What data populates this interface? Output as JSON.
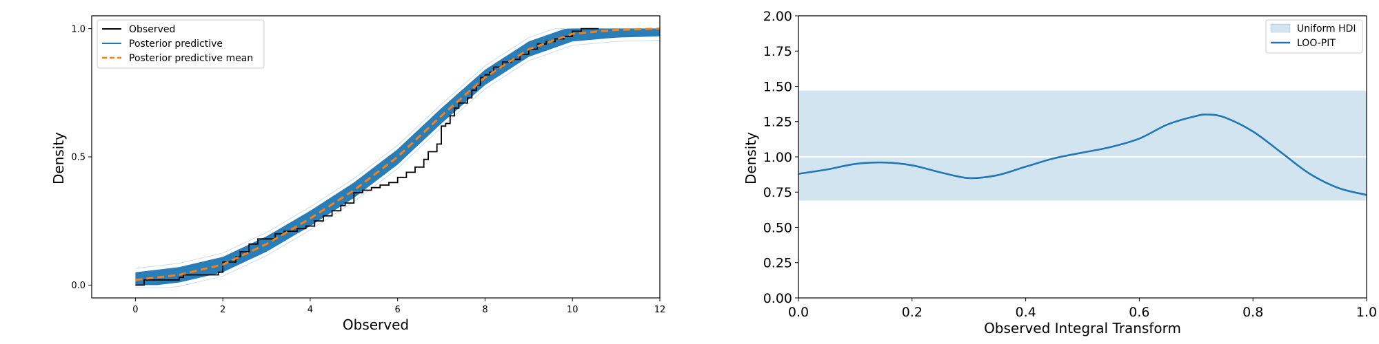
{
  "chart_data": [
    {
      "type": "line",
      "xlabel": "Observed",
      "ylabel": "Density",
      "xlim": [
        -1,
        12
      ],
      "ylim": [
        -0.05,
        1.05
      ],
      "xticks": [
        0,
        2,
        4,
        6,
        8,
        10,
        12
      ],
      "yticks": [
        0.0,
        0.5,
        1.0
      ],
      "xtick_labels": [
        "0",
        "2",
        "4",
        "6",
        "8",
        "10",
        "12"
      ],
      "ytick_labels": [
        "0.0",
        "0.5",
        "1.0"
      ],
      "legend_position": "upper left",
      "grid": false,
      "legend": [
        {
          "label": "Observed",
          "style": "solid",
          "color": "#000000"
        },
        {
          "label": "Posterior predictive",
          "style": "solid",
          "color": "#1f77b4"
        },
        {
          "label": "Posterior predictive mean",
          "style": "dashed",
          "color": "#ff7f0e"
        }
      ],
      "series": [
        {
          "name": "Observed",
          "kind": "step",
          "color": "#000000",
          "x": [
            0,
            0.2,
            1.0,
            1.1,
            1.9,
            2.0,
            2.3,
            2.4,
            2.6,
            2.8,
            3.2,
            3.4,
            3.7,
            3.9,
            4.1,
            4.3,
            4.5,
            4.7,
            4.8,
            5.0,
            5.2,
            5.4,
            5.6,
            5.8,
            6.0,
            6.2,
            6.4,
            6.6,
            6.7,
            6.9,
            7.0,
            7.1,
            7.2,
            7.3,
            7.4,
            7.6,
            7.7,
            7.8,
            7.9,
            8.0,
            8.1,
            8.2,
            8.4,
            8.6,
            8.8,
            9.0,
            9.2,
            9.4,
            9.6,
            9.8,
            10.0,
            10.2,
            10.6
          ],
          "y": [
            0.0,
            0.02,
            0.03,
            0.04,
            0.05,
            0.09,
            0.11,
            0.13,
            0.16,
            0.18,
            0.2,
            0.21,
            0.22,
            0.23,
            0.25,
            0.27,
            0.29,
            0.31,
            0.32,
            0.36,
            0.37,
            0.38,
            0.39,
            0.4,
            0.42,
            0.44,
            0.46,
            0.49,
            0.52,
            0.55,
            0.62,
            0.63,
            0.66,
            0.69,
            0.71,
            0.73,
            0.76,
            0.78,
            0.81,
            0.82,
            0.83,
            0.85,
            0.87,
            0.88,
            0.9,
            0.92,
            0.94,
            0.95,
            0.96,
            0.97,
            0.99,
            1.0,
            1.0
          ]
        },
        {
          "name": "Posterior predictive mean",
          "kind": "line",
          "style": "dashed",
          "color": "#ff7f0e",
          "x": [
            0,
            1,
            2,
            3,
            4,
            5,
            6,
            7,
            8,
            9,
            10,
            11,
            12
          ],
          "y": [
            0.02,
            0.04,
            0.08,
            0.16,
            0.26,
            0.37,
            0.5,
            0.66,
            0.81,
            0.92,
            0.98,
            0.995,
            1.0
          ]
        }
      ],
      "band": {
        "name": "Posterior predictive",
        "color": "#1f77b4",
        "half_width": 0.03
      }
    },
    {
      "type": "line",
      "xlabel": "Observed Integral Transform",
      "ylabel": "Density",
      "xlim": [
        0.0,
        1.0
      ],
      "ylim": [
        0.0,
        2.0
      ],
      "xticks": [
        0.0,
        0.2,
        0.4,
        0.6,
        0.8,
        1.0
      ],
      "yticks": [
        0.0,
        0.25,
        0.5,
        0.75,
        1.0,
        1.25,
        1.5,
        1.75,
        2.0
      ],
      "xtick_labels": [
        "0.0",
        "0.2",
        "0.4",
        "0.6",
        "0.8",
        "1.0"
      ],
      "ytick_labels": [
        "0.00",
        "0.25",
        "0.50",
        "0.75",
        "1.00",
        "1.25",
        "1.50",
        "1.75",
        "2.00"
      ],
      "legend_position": "upper right",
      "grid": false,
      "legend": [
        {
          "label": "Uniform HDI",
          "style": "patch",
          "color": "#1f77b4"
        },
        {
          "label": "LOO-PIT",
          "style": "solid",
          "color": "#1f77b4"
        }
      ],
      "hdi": {
        "lower": 0.69,
        "upper": 1.47,
        "reference": 1.0
      },
      "series": [
        {
          "name": "LOO-PIT",
          "kind": "line",
          "color": "#1f77b4",
          "x": [
            0.0,
            0.05,
            0.1,
            0.15,
            0.2,
            0.25,
            0.3,
            0.35,
            0.4,
            0.45,
            0.5,
            0.55,
            0.6,
            0.65,
            0.7,
            0.72,
            0.75,
            0.8,
            0.85,
            0.9,
            0.95,
            1.0
          ],
          "y": [
            0.88,
            0.91,
            0.95,
            0.96,
            0.94,
            0.89,
            0.85,
            0.87,
            0.93,
            0.99,
            1.03,
            1.07,
            1.13,
            1.23,
            1.29,
            1.3,
            1.28,
            1.18,
            1.03,
            0.88,
            0.78,
            0.73
          ]
        }
      ]
    }
  ]
}
